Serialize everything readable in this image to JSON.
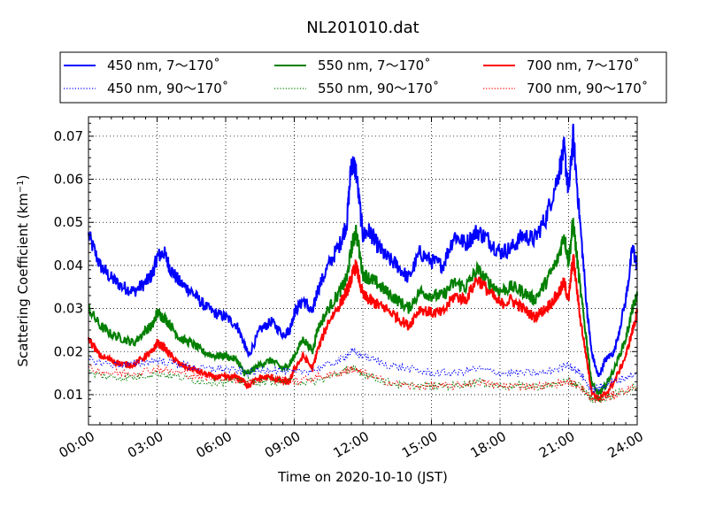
{
  "chart_data": {
    "type": "line",
    "title": "NL201010.dat",
    "xlabel": "Time on 2020-10-10 (JST)",
    "ylabel": "Scattering Coefficient (km",
    "ylabel_sup": "−1",
    "ylabel_close": ")",
    "xlim": [
      0,
      24
    ],
    "ylim": [
      0.003,
      0.0745
    ],
    "x_ticks": [
      0,
      3,
      6,
      9,
      12,
      15,
      18,
      21,
      24
    ],
    "x_tick_labels": [
      "00:00",
      "03:00",
      "06:00",
      "09:00",
      "12:00",
      "15:00",
      "18:00",
      "21:00",
      "24:00"
    ],
    "y_ticks": [
      0.01,
      0.02,
      0.03,
      0.04,
      0.05,
      0.06,
      0.07
    ],
    "y_tick_labels": [
      "0.01",
      "0.02",
      "0.03",
      "0.04",
      "0.05",
      "0.06",
      "0.07"
    ],
    "grid": true,
    "legend_placement": "top (above plot), 3 columns",
    "x_units": "hours",
    "series": [
      {
        "name": "450 nm, 7～170˚",
        "color": "#0000ff",
        "style": "solid",
        "x": [
          0,
          0.5,
          1,
          1.5,
          2,
          2.5,
          2.8,
          3,
          3.3,
          3.6,
          4,
          4.5,
          5,
          5.5,
          6,
          6.5,
          6.8,
          7,
          7.5,
          8,
          8.5,
          8.8,
          9,
          9.4,
          9.8,
          10,
          10.5,
          11,
          11.3,
          11.5,
          11.7,
          12,
          12.3,
          12.6,
          13,
          13.5,
          14,
          14.5,
          15,
          15.5,
          16,
          16.5,
          17,
          17.5,
          18,
          18.5,
          19,
          19.5,
          20,
          20.5,
          20.8,
          21,
          21.2,
          21.5,
          21.8,
          22,
          22.3,
          22.6,
          23,
          23.5,
          23.8,
          24
        ],
        "y": [
          0.047,
          0.04,
          0.037,
          0.035,
          0.034,
          0.036,
          0.038,
          0.042,
          0.043,
          0.039,
          0.036,
          0.034,
          0.031,
          0.029,
          0.028,
          0.026,
          0.022,
          0.019,
          0.025,
          0.027,
          0.024,
          0.025,
          0.029,
          0.032,
          0.029,
          0.034,
          0.04,
          0.045,
          0.05,
          0.064,
          0.062,
          0.047,
          0.048,
          0.045,
          0.042,
          0.04,
          0.037,
          0.043,
          0.041,
          0.04,
          0.047,
          0.045,
          0.048,
          0.046,
          0.043,
          0.044,
          0.047,
          0.046,
          0.051,
          0.06,
          0.067,
          0.057,
          0.07,
          0.05,
          0.03,
          0.02,
          0.014,
          0.018,
          0.02,
          0.032,
          0.044,
          0.04
        ]
      },
      {
        "name": "550 nm, 7～170˚",
        "color": "#007f00",
        "style": "solid",
        "x": [
          0,
          0.5,
          1,
          1.5,
          2,
          2.5,
          2.8,
          3,
          3.3,
          3.6,
          4,
          4.5,
          5,
          5.5,
          6,
          6.5,
          6.8,
          7,
          7.5,
          8,
          8.5,
          8.8,
          9,
          9.4,
          9.8,
          10,
          10.5,
          11,
          11.3,
          11.5,
          11.7,
          12,
          12.3,
          12.6,
          13,
          13.5,
          14,
          14.5,
          15,
          15.5,
          16,
          16.5,
          17,
          17.5,
          18,
          18.5,
          19,
          19.5,
          20,
          20.5,
          20.8,
          21,
          21.2,
          21.5,
          21.8,
          22,
          22.3,
          22.6,
          23,
          23.5,
          23.8,
          24
        ],
        "y": [
          0.03,
          0.026,
          0.024,
          0.023,
          0.022,
          0.025,
          0.026,
          0.029,
          0.028,
          0.026,
          0.023,
          0.022,
          0.02,
          0.019,
          0.019,
          0.018,
          0.015,
          0.015,
          0.017,
          0.018,
          0.016,
          0.017,
          0.019,
          0.023,
          0.02,
          0.025,
          0.03,
          0.034,
          0.037,
          0.044,
          0.048,
          0.038,
          0.037,
          0.036,
          0.034,
          0.032,
          0.03,
          0.034,
          0.033,
          0.033,
          0.036,
          0.035,
          0.039,
          0.036,
          0.034,
          0.035,
          0.034,
          0.032,
          0.036,
          0.041,
          0.047,
          0.041,
          0.05,
          0.035,
          0.022,
          0.013,
          0.01,
          0.012,
          0.016,
          0.023,
          0.03,
          0.033
        ]
      },
      {
        "name": "700 nm, 7～170˚",
        "color": "#ff0000",
        "style": "solid",
        "x": [
          0,
          0.5,
          1,
          1.5,
          2,
          2.5,
          2.8,
          3,
          3.3,
          3.6,
          4,
          4.5,
          5,
          5.5,
          6,
          6.5,
          6.8,
          7,
          7.5,
          8,
          8.5,
          8.8,
          9,
          9.4,
          9.8,
          10,
          10.5,
          11,
          11.3,
          11.5,
          11.7,
          12,
          12.3,
          12.6,
          13,
          13.5,
          14,
          14.5,
          15,
          15.5,
          16,
          16.5,
          17,
          17.5,
          18,
          18.5,
          19,
          19.5,
          20,
          20.5,
          20.8,
          21,
          21.2,
          21.5,
          21.8,
          22,
          22.3,
          22.6,
          23,
          23.5,
          23.8,
          24
        ],
        "y": [
          0.023,
          0.019,
          0.018,
          0.017,
          0.017,
          0.019,
          0.02,
          0.022,
          0.021,
          0.019,
          0.017,
          0.016,
          0.015,
          0.014,
          0.014,
          0.014,
          0.013,
          0.012,
          0.014,
          0.014,
          0.013,
          0.013,
          0.016,
          0.019,
          0.016,
          0.02,
          0.027,
          0.031,
          0.034,
          0.037,
          0.04,
          0.033,
          0.032,
          0.031,
          0.03,
          0.028,
          0.026,
          0.03,
          0.029,
          0.029,
          0.033,
          0.032,
          0.037,
          0.034,
          0.031,
          0.032,
          0.03,
          0.028,
          0.03,
          0.033,
          0.036,
          0.032,
          0.042,
          0.028,
          0.018,
          0.011,
          0.009,
          0.01,
          0.013,
          0.019,
          0.025,
          0.029
        ]
      },
      {
        "name": "450 nm, 90～170˚",
        "color": "#0000ff",
        "style": "dotted",
        "x": [
          0,
          1,
          2,
          3,
          4,
          5,
          6,
          7,
          8,
          9,
          10,
          11,
          11.5,
          12,
          13,
          14,
          15,
          16,
          17,
          18,
          19,
          20,
          21,
          21.5,
          22,
          22.5,
          23,
          24
        ],
        "y": [
          0.018,
          0.017,
          0.017,
          0.018,
          0.017,
          0.016,
          0.016,
          0.015,
          0.016,
          0.015,
          0.016,
          0.018,
          0.02,
          0.019,
          0.017,
          0.016,
          0.015,
          0.015,
          0.016,
          0.015,
          0.015,
          0.015,
          0.017,
          0.015,
          0.011,
          0.012,
          0.013,
          0.015
        ]
      },
      {
        "name": "550 nm, 90～170˚",
        "color": "#007f00",
        "style": "dotted",
        "x": [
          0,
          1,
          2,
          3,
          4,
          5,
          6,
          7,
          8,
          9,
          10,
          11,
          11.5,
          12,
          13,
          14,
          15,
          16,
          17,
          18,
          19,
          20,
          21,
          21.5,
          22,
          22.5,
          23,
          24
        ],
        "y": [
          0.015,
          0.014,
          0.014,
          0.015,
          0.014,
          0.013,
          0.013,
          0.013,
          0.013,
          0.013,
          0.013,
          0.015,
          0.016,
          0.015,
          0.013,
          0.012,
          0.012,
          0.012,
          0.013,
          0.012,
          0.012,
          0.012,
          0.013,
          0.012,
          0.009,
          0.009,
          0.01,
          0.012
        ]
      },
      {
        "name": "700 nm, 90～170˚",
        "color": "#ff0000",
        "style": "dotted",
        "x": [
          0,
          1,
          2,
          3,
          4,
          5,
          6,
          7,
          8,
          9,
          10,
          11,
          11.5,
          12,
          13,
          14,
          15,
          16,
          17,
          18,
          19,
          20,
          21,
          21.5,
          22,
          22.5,
          23,
          24
        ],
        "y": [
          0.016,
          0.015,
          0.015,
          0.016,
          0.015,
          0.014,
          0.014,
          0.013,
          0.014,
          0.013,
          0.014,
          0.015,
          0.016,
          0.015,
          0.013,
          0.012,
          0.012,
          0.012,
          0.013,
          0.012,
          0.012,
          0.012,
          0.013,
          0.012,
          0.009,
          0.009,
          0.01,
          0.012
        ]
      }
    ]
  }
}
